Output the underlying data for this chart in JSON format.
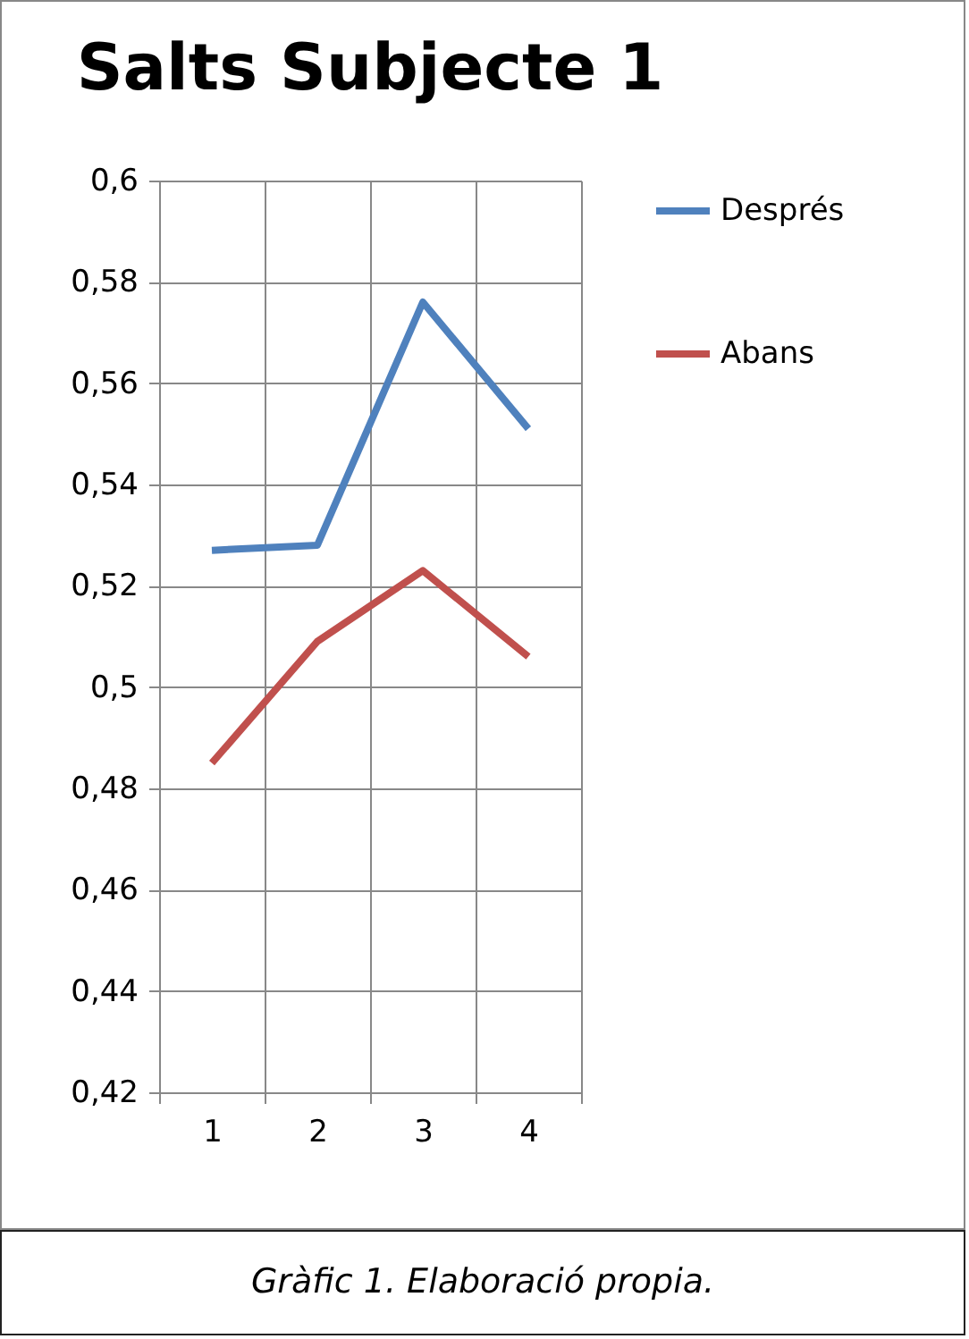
{
  "chart_data": {
    "type": "line",
    "title": "Salts Subjecte 1",
    "categories": [
      "1",
      "2",
      "3",
      "4"
    ],
    "series": [
      {
        "name": "Després",
        "color": "#4f81bd",
        "values": [
          0.527,
          0.528,
          0.576,
          0.551
        ]
      },
      {
        "name": "Abans",
        "color": "#c0504d",
        "values": [
          0.485,
          0.509,
          0.523,
          0.506
        ]
      }
    ],
    "ylim": [
      0.42,
      0.6
    ],
    "yticks": [
      {
        "value": 0.42,
        "label": "0,42"
      },
      {
        "value": 0.44,
        "label": "0,44"
      },
      {
        "value": 0.46,
        "label": "0,46"
      },
      {
        "value": 0.48,
        "label": "0,48"
      },
      {
        "value": 0.5,
        "label": "0,5"
      },
      {
        "value": 0.52,
        "label": "0,52"
      },
      {
        "value": 0.54,
        "label": "0,54"
      },
      {
        "value": 0.56,
        "label": "0,56"
      },
      {
        "value": 0.58,
        "label": "0,58"
      },
      {
        "value": 0.6,
        "label": "0,6"
      }
    ],
    "grid": true,
    "legend": "right",
    "marker": "none",
    "line_style": "solid",
    "annotations": [
      "Gràfic 1. Elaboració propia."
    ]
  }
}
